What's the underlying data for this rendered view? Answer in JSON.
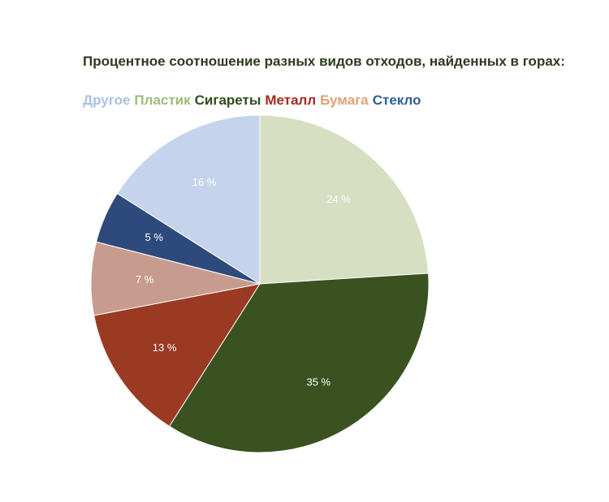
{
  "chart_data": {
    "type": "pie",
    "title": "Процентное соотношение разных видов отходов, найденных в горах:",
    "legend_position": "top-left",
    "slices": [
      {
        "name": "Пластик",
        "value": 24,
        "label": "24 %",
        "color": "#d6dfc2",
        "legend_color": "#9cbd78"
      },
      {
        "name": "Сигареты",
        "value": 35,
        "label": "35 %",
        "color": "#3a5220",
        "legend_color": "#2f4d1a"
      },
      {
        "name": "Металл",
        "value": 13,
        "label": "13 %",
        "color": "#9a3a22",
        "legend_color": "#a52a1e"
      },
      {
        "name": "Бумага",
        "value": 7,
        "label": "7 %",
        "color": "#c79c8e",
        "legend_color": "#e2a07a"
      },
      {
        "name": "Стекло",
        "value": 5,
        "label": "5 %",
        "color": "#2e4a7c",
        "legend_color": "#2f5d9a"
      },
      {
        "name": "Другое",
        "value": 16,
        "label": "16 %",
        "color": "#c5d4ec",
        "legend_color": "#a9c1e3"
      }
    ],
    "legend_order": [
      "Другое",
      "Пластик",
      "Сигареты",
      "Металл",
      "Бумага",
      "Стекло"
    ]
  }
}
